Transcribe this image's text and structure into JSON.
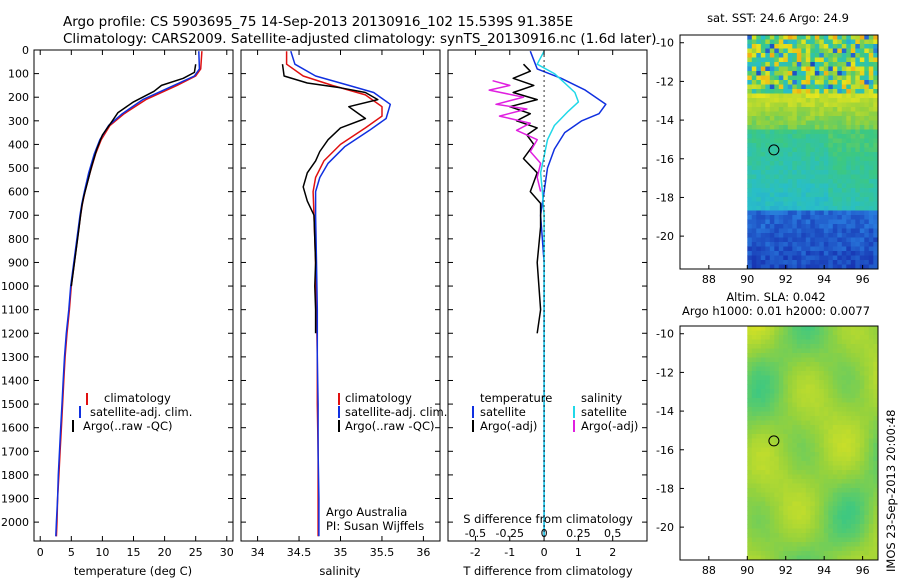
{
  "header": {
    "line1": "Argo profile: CS 5903695_75 14-Sep-2013 20130916_102 15.539S 91.385E",
    "line2": "Climatology: CARS2009. Satellite-adjusted climatology: synTS_20130916.nc (1.6d later)"
  },
  "side_stamp": "IMOS 23-Sep-2013 20:00:48",
  "colors": {
    "climatology": "#e01010",
    "satellite": "#1030e0",
    "argo": "#000000",
    "satellite_s": "#20d8e8",
    "argo_s": "#e020e0"
  },
  "chart_data": [
    {
      "id": "temperature",
      "type": "line",
      "xlabel": "temperature (deg C)",
      "xlim": [
        -1,
        31
      ],
      "xticks": [
        0,
        5,
        10,
        15,
        20,
        25,
        30
      ],
      "ylim": [
        2080,
        0
      ],
      "yticks": [
        0,
        100,
        200,
        300,
        400,
        500,
        600,
        700,
        800,
        900,
        1000,
        1100,
        1200,
        1300,
        1400,
        1500,
        1600,
        1700,
        1800,
        1900,
        2000
      ],
      "legend": [
        "climatology",
        "satellite-adj. clim.",
        "Argo(..raw -QC)"
      ],
      "series": [
        {
          "name": "climatology",
          "color": "#e01010",
          "points": [
            [
              26.0,
              5
            ],
            [
              25.8,
              80
            ],
            [
              25.0,
              110
            ],
            [
              22.0,
              150
            ],
            [
              17.0,
              210
            ],
            [
              13.5,
              270
            ],
            [
              11.2,
              320
            ],
            [
              9.8,
              380
            ],
            [
              8.9,
              440
            ],
            [
              8.0,
              520
            ],
            [
              7.2,
              600
            ],
            [
              6.8,
              650
            ],
            [
              6.5,
              700
            ],
            [
              6.0,
              800
            ],
            [
              5.5,
              900
            ],
            [
              5.0,
              1000
            ],
            [
              4.7,
              1100
            ],
            [
              4.3,
              1200
            ],
            [
              4.0,
              1300
            ],
            [
              3.8,
              1400
            ],
            [
              3.6,
              1500
            ],
            [
              3.4,
              1600
            ],
            [
              3.2,
              1700
            ],
            [
              3.0,
              1800
            ],
            [
              2.8,
              1900
            ],
            [
              2.7,
              2000
            ],
            [
              2.6,
              2060
            ]
          ]
        },
        {
          "name": "satellite-adj. clim.",
          "color": "#1030e0",
          "points": [
            [
              25.5,
              5
            ],
            [
              25.6,
              80
            ],
            [
              24.8,
              110
            ],
            [
              21.5,
              150
            ],
            [
              16.5,
              210
            ],
            [
              13.2,
              270
            ],
            [
              11.0,
              320
            ],
            [
              9.6,
              380
            ],
            [
              8.7,
              440
            ],
            [
              7.8,
              520
            ],
            [
              7.1,
              600
            ],
            [
              6.7,
              650
            ],
            [
              6.4,
              700
            ],
            [
              5.9,
              800
            ],
            [
              5.4,
              900
            ],
            [
              4.9,
              1000
            ],
            [
              4.6,
              1100
            ],
            [
              4.2,
              1200
            ],
            [
              3.9,
              1300
            ],
            [
              3.7,
              1400
            ],
            [
              3.5,
              1500
            ],
            [
              3.3,
              1600
            ],
            [
              3.1,
              1700
            ],
            [
              2.9,
              1800
            ],
            [
              2.8,
              1900
            ],
            [
              2.6,
              2000
            ],
            [
              2.5,
              2060
            ]
          ]
        },
        {
          "name": "Argo(..raw -QC)",
          "color": "#000000",
          "points": [
            [
              25.0,
              60
            ],
            [
              24.8,
              95
            ],
            [
              23.0,
              120
            ],
            [
              19.5,
              150
            ],
            [
              18.3,
              175
            ],
            [
              15.0,
              220
            ],
            [
              12.5,
              265
            ],
            [
              11.6,
              300
            ],
            [
              10.0,
              360
            ],
            [
              9.1,
              420
            ],
            [
              8.3,
              490
            ],
            [
              7.6,
              560
            ],
            [
              7.0,
              620
            ],
            [
              6.7,
              660
            ],
            [
              6.5,
              700
            ],
            [
              6.1,
              780
            ],
            [
              5.7,
              860
            ],
            [
              5.3,
              940
            ],
            [
              5.0,
              1000
            ]
          ]
        }
      ]
    },
    {
      "id": "salinity",
      "type": "line",
      "xlabel": "salinity",
      "xlim": [
        33.8,
        36.2
      ],
      "xticks": [
        34,
        34.5,
        35,
        35.5,
        36
      ],
      "ylim": [
        2080,
        0
      ],
      "legend": [
        "climatology",
        "satellite-adj. clim.",
        "Argo(..raw -QC)"
      ],
      "annotation": [
        "Argo Australia",
        "PI: Susan Wijffels"
      ],
      "series": [
        {
          "name": "climatology",
          "color": "#e01010",
          "points": [
            [
              34.35,
              5
            ],
            [
              34.35,
              60
            ],
            [
              34.55,
              110
            ],
            [
              34.9,
              150
            ],
            [
              35.3,
              190
            ],
            [
              35.5,
              240
            ],
            [
              35.5,
              280
            ],
            [
              35.3,
              330
            ],
            [
              35.0,
              400
            ],
            [
              34.8,
              470
            ],
            [
              34.7,
              540
            ],
            [
              34.67,
              600
            ],
            [
              34.68,
              700
            ],
            [
              34.7,
              900
            ],
            [
              34.71,
              1100
            ],
            [
              34.72,
              1300
            ],
            [
              34.72,
              1500
            ],
            [
              34.73,
              1700
            ],
            [
              34.73,
              1900
            ],
            [
              34.73,
              2060
            ]
          ]
        },
        {
          "name": "satellite-adj. clim.",
          "color": "#1030e0",
          "points": [
            [
              34.4,
              5
            ],
            [
              34.45,
              60
            ],
            [
              34.7,
              110
            ],
            [
              35.1,
              150
            ],
            [
              35.4,
              180
            ],
            [
              35.6,
              230
            ],
            [
              35.55,
              290
            ],
            [
              35.35,
              340
            ],
            [
              35.05,
              410
            ],
            [
              34.85,
              480
            ],
            [
              34.75,
              540
            ],
            [
              34.7,
              600
            ],
            [
              34.7,
              700
            ],
            [
              34.71,
              900
            ],
            [
              34.72,
              1100
            ],
            [
              34.72,
              1300
            ],
            [
              34.73,
              1500
            ],
            [
              34.73,
              1700
            ],
            [
              34.74,
              1900
            ],
            [
              34.74,
              2060
            ]
          ]
        },
        {
          "name": "Argo(..raw -QC)",
          "color": "#000000",
          "points": [
            [
              34.3,
              60
            ],
            [
              34.32,
              110
            ],
            [
              34.6,
              140
            ],
            [
              35.0,
              160
            ],
            [
              35.3,
              180
            ],
            [
              35.45,
              210
            ],
            [
              35.1,
              240
            ],
            [
              35.2,
              265
            ],
            [
              35.3,
              290
            ],
            [
              35.0,
              330
            ],
            [
              34.85,
              380
            ],
            [
              34.75,
              430
            ],
            [
              34.7,
              470
            ],
            [
              34.6,
              520
            ],
            [
              34.55,
              580
            ],
            [
              34.6,
              640
            ],
            [
              34.68,
              700
            ],
            [
              34.69,
              800
            ],
            [
              34.7,
              900
            ],
            [
              34.69,
              1000
            ],
            [
              34.7,
              1100
            ],
            [
              34.7,
              1200
            ]
          ]
        }
      ]
    },
    {
      "id": "difference",
      "type": "line",
      "xlabel": "T difference from climatology",
      "xlim": [
        -2.8,
        3.0
      ],
      "xticks": [
        -2,
        -1,
        0,
        1,
        2
      ],
      "top_label": "S difference from climatology",
      "top_ticks": [
        "-0.5",
        "-0.25",
        "0",
        "0.25",
        "0.5"
      ],
      "top_ticks_at": [
        -2,
        -1,
        0,
        1,
        2
      ],
      "ylim": [
        2080,
        0
      ],
      "legend_left": [
        "temperature",
        "satellite",
        "Argo(-adj)"
      ],
      "legend_right": [
        "salinity",
        "satellite",
        "Argo(-adj)"
      ],
      "series": [
        {
          "name": "T satellite",
          "color": "#1030e0",
          "points": [
            [
              -0.4,
              5
            ],
            [
              -0.2,
              80
            ],
            [
              0.5,
              120
            ],
            [
              1.2,
              170
            ],
            [
              1.8,
              230
            ],
            [
              1.6,
              270
            ],
            [
              1.1,
              300
            ],
            [
              0.6,
              350
            ],
            [
              0.3,
              420
            ],
            [
              0.1,
              500
            ],
            [
              0,
              600
            ],
            [
              -0.1,
              700
            ],
            [
              0,
              900
            ],
            [
              0,
              1200
            ],
            [
              0,
              1500
            ],
            [
              0,
              1800
            ],
            [
              0,
              2060
            ]
          ]
        },
        {
          "name": "T Argo(-adj)",
          "color": "#000000",
          "points": [
            [
              -0.6,
              60
            ],
            [
              -0.4,
              90
            ],
            [
              -0.9,
              120
            ],
            [
              -0.3,
              150
            ],
            [
              -0.9,
              180
            ],
            [
              -0.2,
              210
            ],
            [
              -1.0,
              240
            ],
            [
              -0.4,
              270
            ],
            [
              -0.8,
              300
            ],
            [
              -0.2,
              330
            ],
            [
              -0.5,
              360
            ],
            [
              -0.3,
              400
            ],
            [
              -0.6,
              460
            ],
            [
              -0.2,
              520
            ],
            [
              -0.4,
              600
            ],
            [
              -0.1,
              650
            ],
            [
              -0.1,
              750
            ],
            [
              -0.2,
              900
            ],
            [
              -0.1,
              1100
            ],
            [
              -0.2,
              1200
            ]
          ]
        },
        {
          "name": "S satellite",
          "color": "#20d8e8",
          "points": [
            [
              0,
              5
            ],
            [
              -0.2,
              60
            ],
            [
              0.3,
              100
            ],
            [
              0.6,
              140
            ],
            [
              0.9,
              180
            ],
            [
              1.0,
              220
            ],
            [
              0.7,
              260
            ],
            [
              0.3,
              320
            ],
            [
              0.1,
              380
            ],
            [
              0,
              450
            ],
            [
              -0.1,
              520
            ],
            [
              -0.05,
              600
            ],
            [
              0,
              700
            ],
            [
              0,
              900
            ],
            [
              0,
              1200
            ],
            [
              0,
              1500
            ],
            [
              0,
              1800
            ],
            [
              0,
              2060
            ]
          ]
        },
        {
          "name": "S Argo(-adj)",
          "color": "#e020e0",
          "points": [
            [
              -1.5,
              130
            ],
            [
              -1.0,
              150
            ],
            [
              -1.6,
              170
            ],
            [
              -0.6,
              200
            ],
            [
              -1.4,
              230
            ],
            [
              -0.5,
              250
            ],
            [
              -1.3,
              280
            ],
            [
              -0.4,
              310
            ],
            [
              -0.8,
              340
            ],
            [
              -0.2,
              380
            ],
            [
              -0.4,
              430
            ],
            [
              -0.1,
              480
            ],
            [
              -0.2,
              540
            ],
            [
              -0.1,
              600
            ]
          ]
        }
      ]
    },
    {
      "id": "sst_map",
      "type": "heatmap",
      "title": "sat. SST: 24.6 Argo: 24.9",
      "xticks": [
        "88",
        "90",
        "92",
        "94",
        "96"
      ],
      "yticks": [
        "-10",
        "-12",
        "-14",
        "-16",
        "-18",
        "-20"
      ],
      "xlim": [
        86.5,
        96.8
      ],
      "ylim": [
        -21.7,
        -9.6
      ],
      "data_start_lon": 90.0,
      "profile_marker": [
        91.385,
        -15.539
      ]
    },
    {
      "id": "sla_map",
      "type": "heatmap",
      "title_line1": "Altim. SLA: 0.042",
      "title_line2": "Argo h1000: 0.01 h2000: 0.0077",
      "xticks": [
        "88",
        "90",
        "92",
        "94",
        "96"
      ],
      "yticks": [
        "-10",
        "-12",
        "-14",
        "-16",
        "-18",
        "-20"
      ],
      "xlim": [
        86.5,
        96.8
      ],
      "ylim": [
        -21.7,
        -9.6
      ],
      "data_start_lon": 90.0,
      "profile_marker": [
        91.385,
        -15.539
      ]
    }
  ]
}
